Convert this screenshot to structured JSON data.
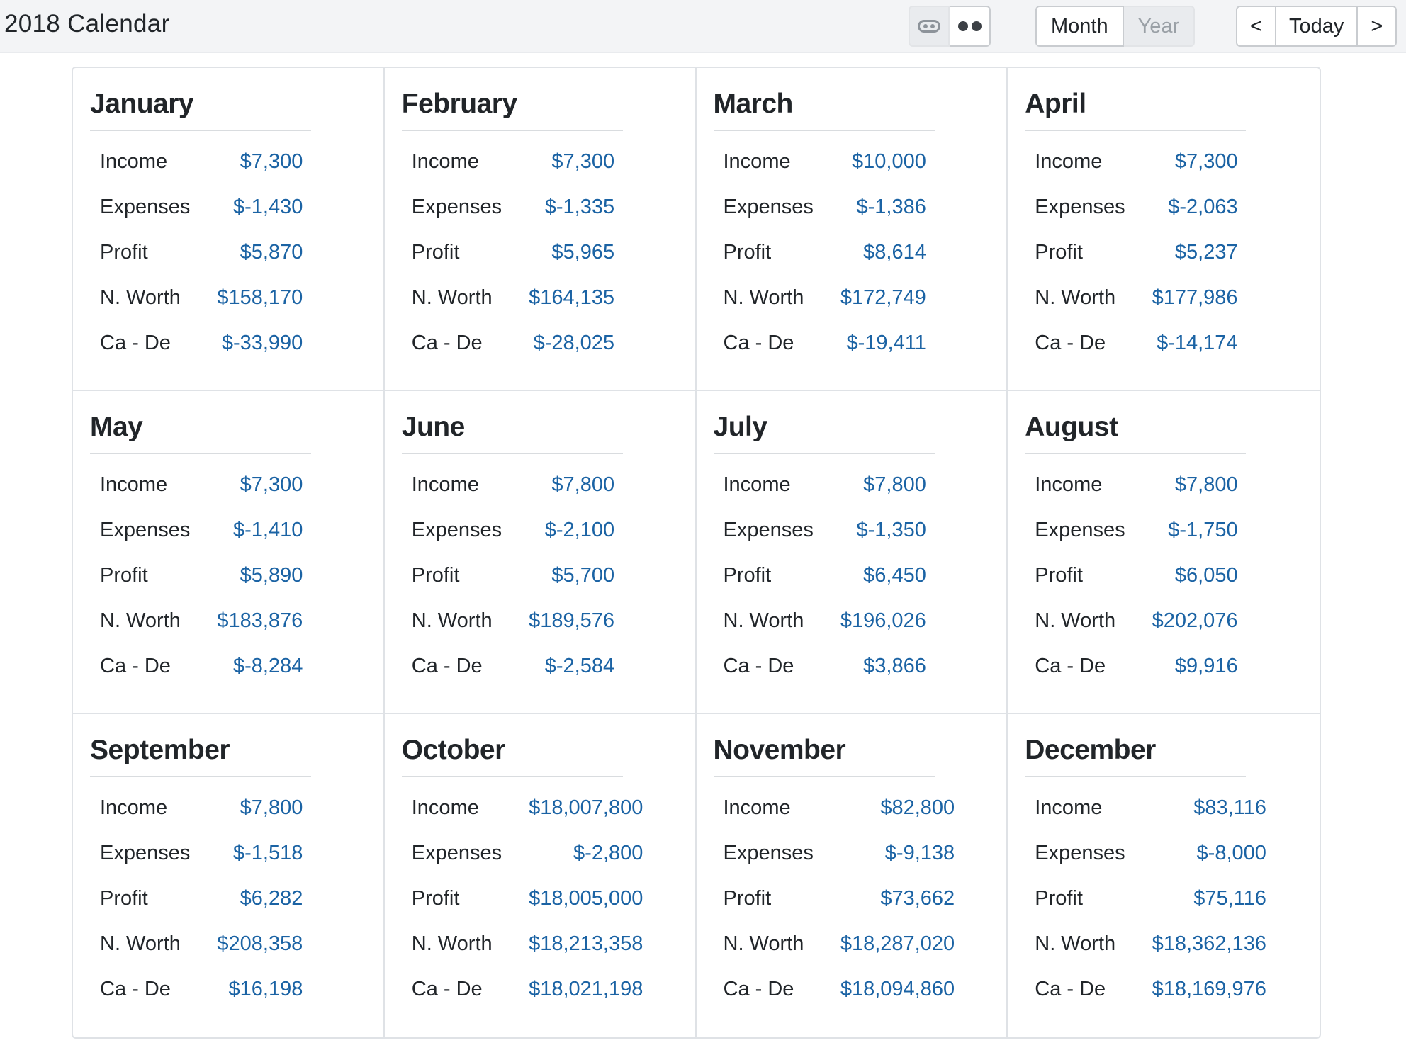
{
  "header": {
    "title": "2018 Calendar",
    "view_month_label": "Month",
    "view_year_label": "Year",
    "prev_label": "<",
    "today_label": "Today",
    "next_label": ">"
  },
  "stat_labels": {
    "income": "Income",
    "expenses": "Expenses",
    "profit": "Profit",
    "net_worth": "N. Worth",
    "cash_debt": "Ca - De"
  },
  "months": [
    {
      "name": "January",
      "income": "$7,300",
      "expenses": "$-1,430",
      "profit": "$5,870",
      "net_worth": "$158,170",
      "cash_debt": "$-33,990"
    },
    {
      "name": "February",
      "income": "$7,300",
      "expenses": "$-1,335",
      "profit": "$5,965",
      "net_worth": "$164,135",
      "cash_debt": "$-28,025"
    },
    {
      "name": "March",
      "income": "$10,000",
      "expenses": "$-1,386",
      "profit": "$8,614",
      "net_worth": "$172,749",
      "cash_debt": "$-19,411"
    },
    {
      "name": "April",
      "income": "$7,300",
      "expenses": "$-2,063",
      "profit": "$5,237",
      "net_worth": "$177,986",
      "cash_debt": "$-14,174"
    },
    {
      "name": "May",
      "income": "$7,300",
      "expenses": "$-1,410",
      "profit": "$5,890",
      "net_worth": "$183,876",
      "cash_debt": "$-8,284"
    },
    {
      "name": "June",
      "income": "$7,800",
      "expenses": "$-2,100",
      "profit": "$5,700",
      "net_worth": "$189,576",
      "cash_debt": "$-2,584"
    },
    {
      "name": "July",
      "income": "$7,800",
      "expenses": "$-1,350",
      "profit": "$6,450",
      "net_worth": "$196,026",
      "cash_debt": "$3,866"
    },
    {
      "name": "August",
      "income": "$7,800",
      "expenses": "$-1,750",
      "profit": "$6,050",
      "net_worth": "$202,076",
      "cash_debt": "$9,916"
    },
    {
      "name": "September",
      "income": "$7,800",
      "expenses": "$-1,518",
      "profit": "$6,282",
      "net_worth": "$208,358",
      "cash_debt": "$16,198"
    },
    {
      "name": "October",
      "income": "$18,007,800",
      "expenses": "$-2,800",
      "profit": "$18,005,000",
      "net_worth": "$18,213,358",
      "cash_debt": "$18,021,198"
    },
    {
      "name": "November",
      "income": "$82,800",
      "expenses": "$-9,138",
      "profit": "$73,662",
      "net_worth": "$18,287,020",
      "cash_debt": "$18,094,860"
    },
    {
      "name": "December",
      "income": "$83,116",
      "expenses": "$-8,000",
      "profit": "$75,116",
      "net_worth": "$18,362,136",
      "cash_debt": "$18,169,976"
    }
  ],
  "colors": {
    "value_text": "#1b63a4",
    "label_text": "#212529",
    "topbar_bg": "#f3f4f6"
  }
}
